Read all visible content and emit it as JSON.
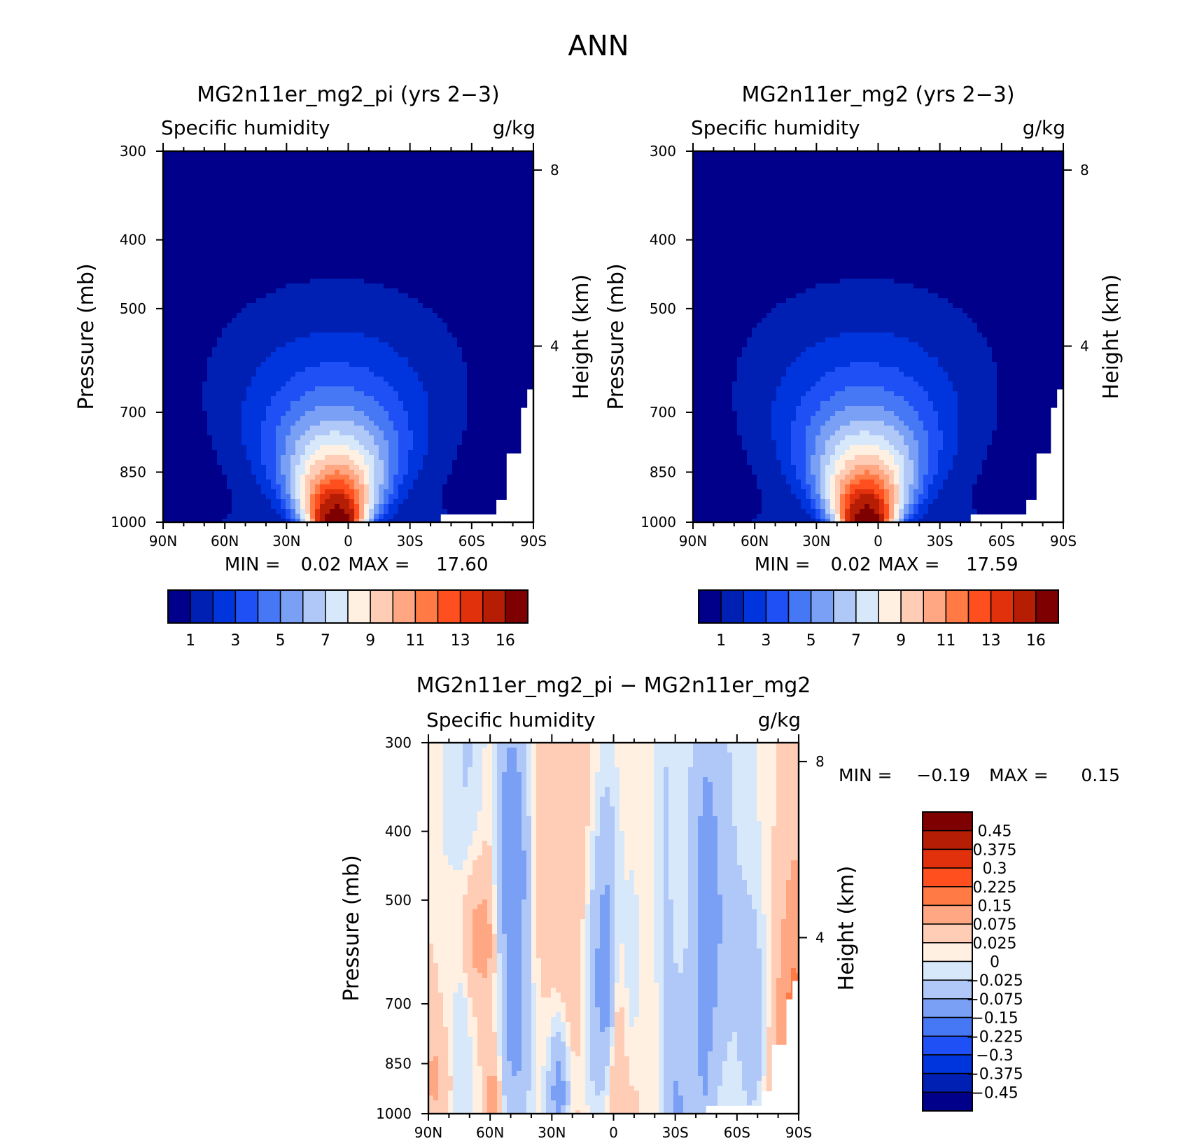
{
  "figure": {
    "title": "ANN"
  },
  "colors": {
    "abs_palette": [
      "#00008a",
      "#0020b4",
      "#0034dc",
      "#1e50f5",
      "#4678f5",
      "#7aa0f5",
      "#b0c8f8",
      "#d8e8fb",
      "#fff0e2",
      "#ffcdb5",
      "#ffa683",
      "#ff7a45",
      "#ff4f1e",
      "#e0300c",
      "#b51d05",
      "#7f0000"
    ],
    "diff_palette": [
      "#00008a",
      "#0020b4",
      "#0034dc",
      "#1e50f5",
      "#4678f5",
      "#7aa0f5",
      "#b0c8f8",
      "#d8e8fb",
      "#fff0e2",
      "#ffcdb5",
      "#ffa683",
      "#ff7a45",
      "#ff4f1e",
      "#e0300c",
      "#b51d05",
      "#7f0000"
    ]
  },
  "chart_data": [
    {
      "type": "contour",
      "title": "MG2n11er_mg2_pi (yrs 2−3)",
      "left_label": "Specific humidity",
      "right_label": "g/kg",
      "ylabel": "Pressure (mb)",
      "ylabel_right": "Height (km)",
      "x_ticks": [
        "90N",
        "60N",
        "30N",
        "0",
        "30S",
        "60S",
        "90S"
      ],
      "x_values": [
        90,
        60,
        30,
        0,
        -30,
        -60,
        -90
      ],
      "xlim": [
        90,
        -90
      ],
      "y_ticks": [
        "300",
        "400",
        "500",
        "700",
        "850",
        "1000"
      ],
      "y_values": [
        300,
        400,
        500,
        700,
        850,
        1000
      ],
      "ylim": [
        300,
        1000
      ],
      "y_scale": "log",
      "right_ticks": [
        "8",
        "4"
      ],
      "right_values": [
        8,
        4
      ],
      "min_label": "MIN =",
      "min_value": "0.02",
      "max_label": "MAX =",
      "max_value": "17.60",
      "colorbar_labels": [
        "1",
        "3",
        "5",
        "7",
        "9",
        "11",
        "13",
        "16"
      ],
      "field_peak": 17.6
    },
    {
      "type": "contour",
      "title": "MG2n11er_mg2 (yrs 2−3)",
      "left_label": "Specific humidity",
      "right_label": "g/kg",
      "ylabel": "Pressure (mb)",
      "ylabel_right": "Height (km)",
      "x_ticks": [
        "90N",
        "60N",
        "30N",
        "0",
        "30S",
        "60S",
        "90S"
      ],
      "x_values": [
        90,
        60,
        30,
        0,
        -30,
        -60,
        -90
      ],
      "xlim": [
        90,
        -90
      ],
      "y_ticks": [
        "300",
        "400",
        "500",
        "700",
        "850",
        "1000"
      ],
      "y_values": [
        300,
        400,
        500,
        700,
        850,
        1000
      ],
      "ylim": [
        300,
        1000
      ],
      "y_scale": "log",
      "right_ticks": [
        "8",
        "4"
      ],
      "right_values": [
        8,
        4
      ],
      "min_label": "MIN =",
      "min_value": "0.02",
      "max_label": "MAX =",
      "max_value": "17.59",
      "colorbar_labels": [
        "1",
        "3",
        "5",
        "7",
        "9",
        "11",
        "13",
        "16"
      ],
      "field_peak": 17.59
    },
    {
      "type": "contour",
      "title": "MG2n11er_mg2_pi − MG2n11er_mg2",
      "left_label": "Specific humidity",
      "right_label": "g/kg",
      "ylabel": "Pressure (mb)",
      "ylabel_right": "Height (km)",
      "x_ticks": [
        "90N",
        "60N",
        "30N",
        "0",
        "30S",
        "60S",
        "90S"
      ],
      "x_values": [
        90,
        60,
        30,
        0,
        -30,
        -60,
        -90
      ],
      "xlim": [
        90,
        -90
      ],
      "y_ticks": [
        "300",
        "400",
        "500",
        "700",
        "850",
        "1000"
      ],
      "y_values": [
        300,
        400,
        500,
        700,
        850,
        1000
      ],
      "ylim": [
        300,
        1000
      ],
      "y_scale": "log",
      "right_ticks": [
        "8",
        "4"
      ],
      "right_values": [
        8,
        4
      ],
      "min_label": "MIN =",
      "min_value": "−0.19",
      "max_label": "MAX =",
      "max_value": "0.15",
      "colorbar_labels": [
        "0.45",
        "0.375",
        "0.3",
        "0.225",
        "0.15",
        "0.075",
        "0.025",
        "0",
        "−0.025",
        "−0.075",
        "−0.15",
        "−0.225",
        "−0.3",
        "−0.375",
        "−0.45"
      ]
    }
  ]
}
